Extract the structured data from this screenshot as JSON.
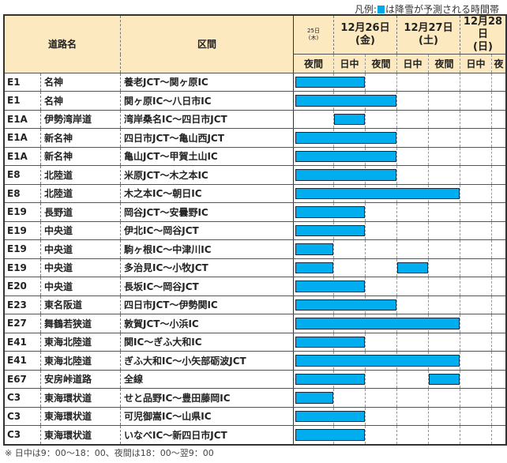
{
  "legend": {
    "prefix": "凡例:",
    "text": "は降雪が予測される時間帯",
    "color": "#00aeef"
  },
  "header": {
    "road_name": "道路名",
    "section": "区間",
    "dates": [
      {
        "label": "25日",
        "sub": "(木)"
      },
      {
        "label": "12月26日",
        "sub": "(金)"
      },
      {
        "label": "12月27日",
        "sub": "(土)"
      },
      {
        "label": "12月28日",
        "sub": "(日)"
      }
    ],
    "slots": [
      "夜間",
      "日中",
      "夜間",
      "日中",
      "夜間",
      "日中",
      "夜"
    ]
  },
  "rows": [
    {
      "code": "E1",
      "road": "名神",
      "section": "養老JCT～関ヶ原IC",
      "snow": [
        0,
        1
      ]
    },
    {
      "code": "E1",
      "road": "名神",
      "section": "関ヶ原IC～八日市IC",
      "snow": [
        0,
        1,
        2
      ]
    },
    {
      "code": "E1A",
      "road": "伊勢湾岸道",
      "section": "湾岸桑名IC～四日市JCT",
      "snow": [
        1
      ]
    },
    {
      "code": "E1A",
      "road": "新名神",
      "section": "四日市JCT～亀山西JCT",
      "snow": [
        0,
        1,
        2
      ]
    },
    {
      "code": "E1A",
      "road": "新名神",
      "section": "亀山JCT～甲賀土山IC",
      "snow": [
        0,
        1,
        2
      ]
    },
    {
      "code": "E8",
      "road": "北陸道",
      "section": "米原JCT～木之本IC",
      "snow": [
        0,
        1,
        2
      ]
    },
    {
      "code": "E8",
      "road": "北陸道",
      "section": "木之本IC～朝日IC",
      "snow": [
        0,
        1,
        2,
        3,
        4
      ]
    },
    {
      "code": "E19",
      "road": "長野道",
      "section": "岡谷JCT～安曇野IC",
      "snow": [
        0,
        1
      ]
    },
    {
      "code": "E19",
      "road": "中央道",
      "section": "伊北IC～岡谷JCT",
      "snow": [
        0,
        1
      ]
    },
    {
      "code": "E19",
      "road": "中央道",
      "section": "駒ヶ根IC～中津川IC",
      "snow": [
        0
      ]
    },
    {
      "code": "E19",
      "road": "中央道",
      "section": "多治見IC～小牧JCT",
      "snow": [
        0,
        3
      ]
    },
    {
      "code": "E20",
      "road": "中央道",
      "section": "長坂IC～岡谷JCT",
      "snow": [
        0,
        1
      ]
    },
    {
      "code": "E23",
      "road": "東名阪道",
      "section": "四日市JCT～伊勢関IC",
      "snow": [
        0,
        1,
        2
      ]
    },
    {
      "code": "E27",
      "road": "舞鶴若狭道",
      "section": "敦賀JCT～小浜IC",
      "snow": [
        0,
        1,
        2,
        3,
        4
      ]
    },
    {
      "code": "E41",
      "road": "東海北陸道",
      "section": "関IC～ぎふ大和IC",
      "snow": [
        0,
        1
      ]
    },
    {
      "code": "E41",
      "road": "東海北陸道",
      "section": "ぎふ大和IC～小矢部砺波JCT",
      "snow": [
        0,
        1,
        2,
        3,
        4
      ]
    },
    {
      "code": "E67",
      "road": "安房峠道路",
      "section": "全線",
      "snow": [
        0,
        1,
        4
      ]
    },
    {
      "code": "C3",
      "road": "東海環状道",
      "section": "せと品野IC～豊田藤岡IC",
      "snow": [
        0
      ]
    },
    {
      "code": "C3",
      "road": "東海環状道",
      "section": "可児御嵩IC～山県IC",
      "snow": [
        0,
        1
      ]
    },
    {
      "code": "C3",
      "road": "東海環状道",
      "section": "いなべIC～新四日市JCT",
      "snow": [
        0,
        1
      ]
    }
  ],
  "footnote": "※ 日中は9：00～18：00、夜間は18：00～翌9：00"
}
